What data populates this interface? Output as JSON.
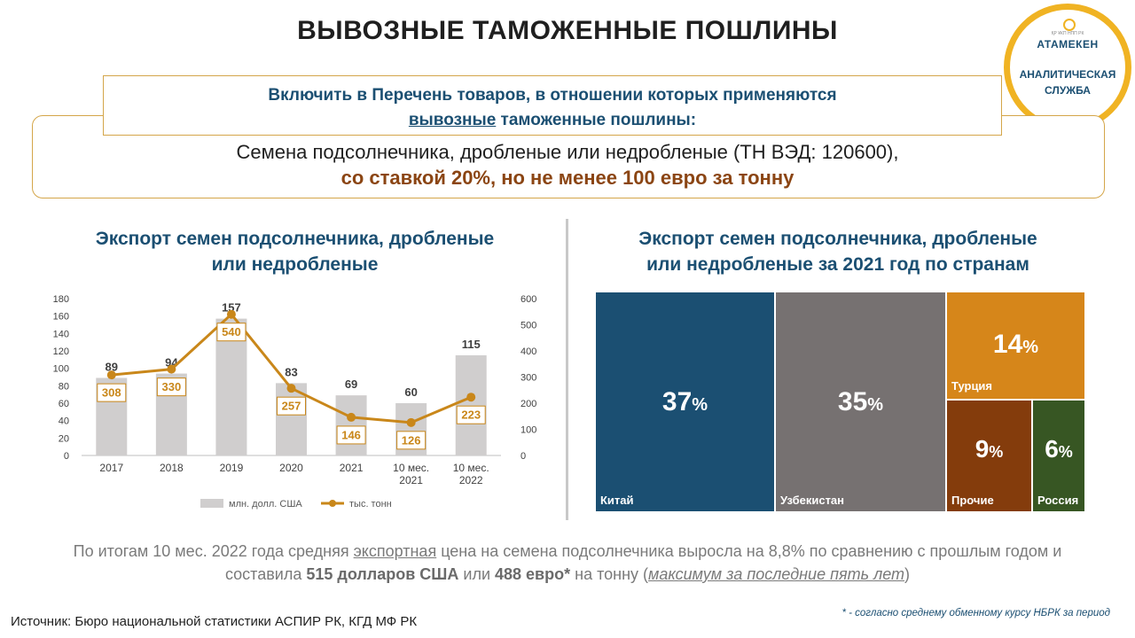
{
  "header": {
    "title": "ВЫВОЗНЫЕ ТАМОЖЕННЫЕ ПОШЛИНЫ"
  },
  "logo": {
    "small_text": "ҚР ҰКП   НПП РК",
    "name": "АТАМЕКЕН",
    "line1": "АНАЛИТИЧЕСКАЯ",
    "line2": "СЛУЖБА"
  },
  "proposal": {
    "line1": "Включить в Перечень товаров, в отношении которых применяются",
    "line2_underlined": "вывозные",
    "line2_rest": " таможенные пошлины:",
    "product": "Семена подсолнечника, дробленые или недробленые (ТН ВЭД: 120600),",
    "rate": "со ставкой 20%,  но не менее 100 евро за тонну"
  },
  "left_chart_title": {
    "line1": "Экспорт семен подсолнечника, дробленые",
    "line2": "или недробленые"
  },
  "right_chart_title": {
    "line1": "Экспорт семен подсолнечника, дробленые",
    "line2": "или недробленые за 2021 год по странам"
  },
  "chart_data": [
    {
      "type": "bar",
      "categories": [
        "2017",
        "2018",
        "2019",
        "2020",
        "2021",
        "10 мес.|2021",
        "10 мес.|2022"
      ],
      "series": [
        {
          "name": "млн. долл. США",
          "type": "bar",
          "axis": "left",
          "values": [
            89,
            94,
            157,
            83,
            69,
            60,
            115
          ]
        },
        {
          "name": "тыс. тонн",
          "type": "line",
          "axis": "right",
          "values": [
            308,
            330,
            540,
            257,
            146,
            126,
            223
          ]
        }
      ],
      "y_left": {
        "min": 0,
        "max": 180,
        "ticks": [
          0,
          20,
          40,
          60,
          80,
          100,
          120,
          140,
          160,
          180
        ]
      },
      "y_right": {
        "min": 0,
        "max": 600,
        "ticks": [
          0,
          100,
          200,
          300,
          400,
          500,
          600
        ]
      },
      "legend_position": "bottom",
      "colors": {
        "bar": "#d0cece",
        "line": "#c9871a",
        "label_border": "#c9871a",
        "label_text": "#c9871a"
      }
    },
    {
      "type": "treemap",
      "items": [
        {
          "name": "Китай",
          "value": "37",
          "unit": "%",
          "color": "#1b4f72"
        },
        {
          "name": "Узбекистан",
          "value": "35",
          "unit": "%",
          "color": "#767171"
        },
        {
          "name": "Турция",
          "value": "14",
          "unit": "%",
          "color": "#d6861a"
        },
        {
          "name": "Прочие",
          "value": "9",
          "unit": "%",
          "color": "#843c0c"
        },
        {
          "name": "Россия",
          "value": "6",
          "unit": "%",
          "color": "#375623"
        }
      ]
    }
  ],
  "footer": {
    "p1": "По итогам 10 мес. 2022 года средняя ",
    "p2_underlined": "экспортная",
    "p3": " цена на семена подсолнечника  выросла на 8,8% по сравнению с прошлым  годом и составила ",
    "p4_bold": "515 долларов США",
    "p5": " или ",
    "p6_bold": "488 евро*",
    "p7": " на тонну (",
    "p8_italic_underlined": "максимум за последние пять лет",
    "p9": ")"
  },
  "source": "Источник:  Бюро национальной  статистики  АСПИР РК, КГД МФ РК",
  "note": "* - согласно среднему обменному курсу НБРК за период"
}
